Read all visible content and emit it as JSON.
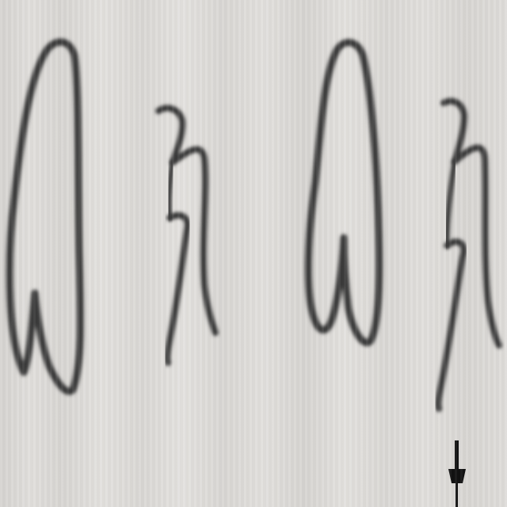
{
  "handwriting": {
    "glyphs": [
      {
        "name": "glyph-1",
        "text": "ⴰ"
      },
      {
        "name": "glyph-2",
        "text": "ⵣ"
      },
      {
        "name": "glyph-3",
        "text": "ⴰ"
      },
      {
        "name": "glyph-4",
        "text": "ⵣ"
      }
    ]
  },
  "colors": {
    "paper": "#dcdad7",
    "ink": "#3a3a3a",
    "marker": "#111111"
  },
  "icons": {
    "marker": "pen-marker-icon"
  }
}
